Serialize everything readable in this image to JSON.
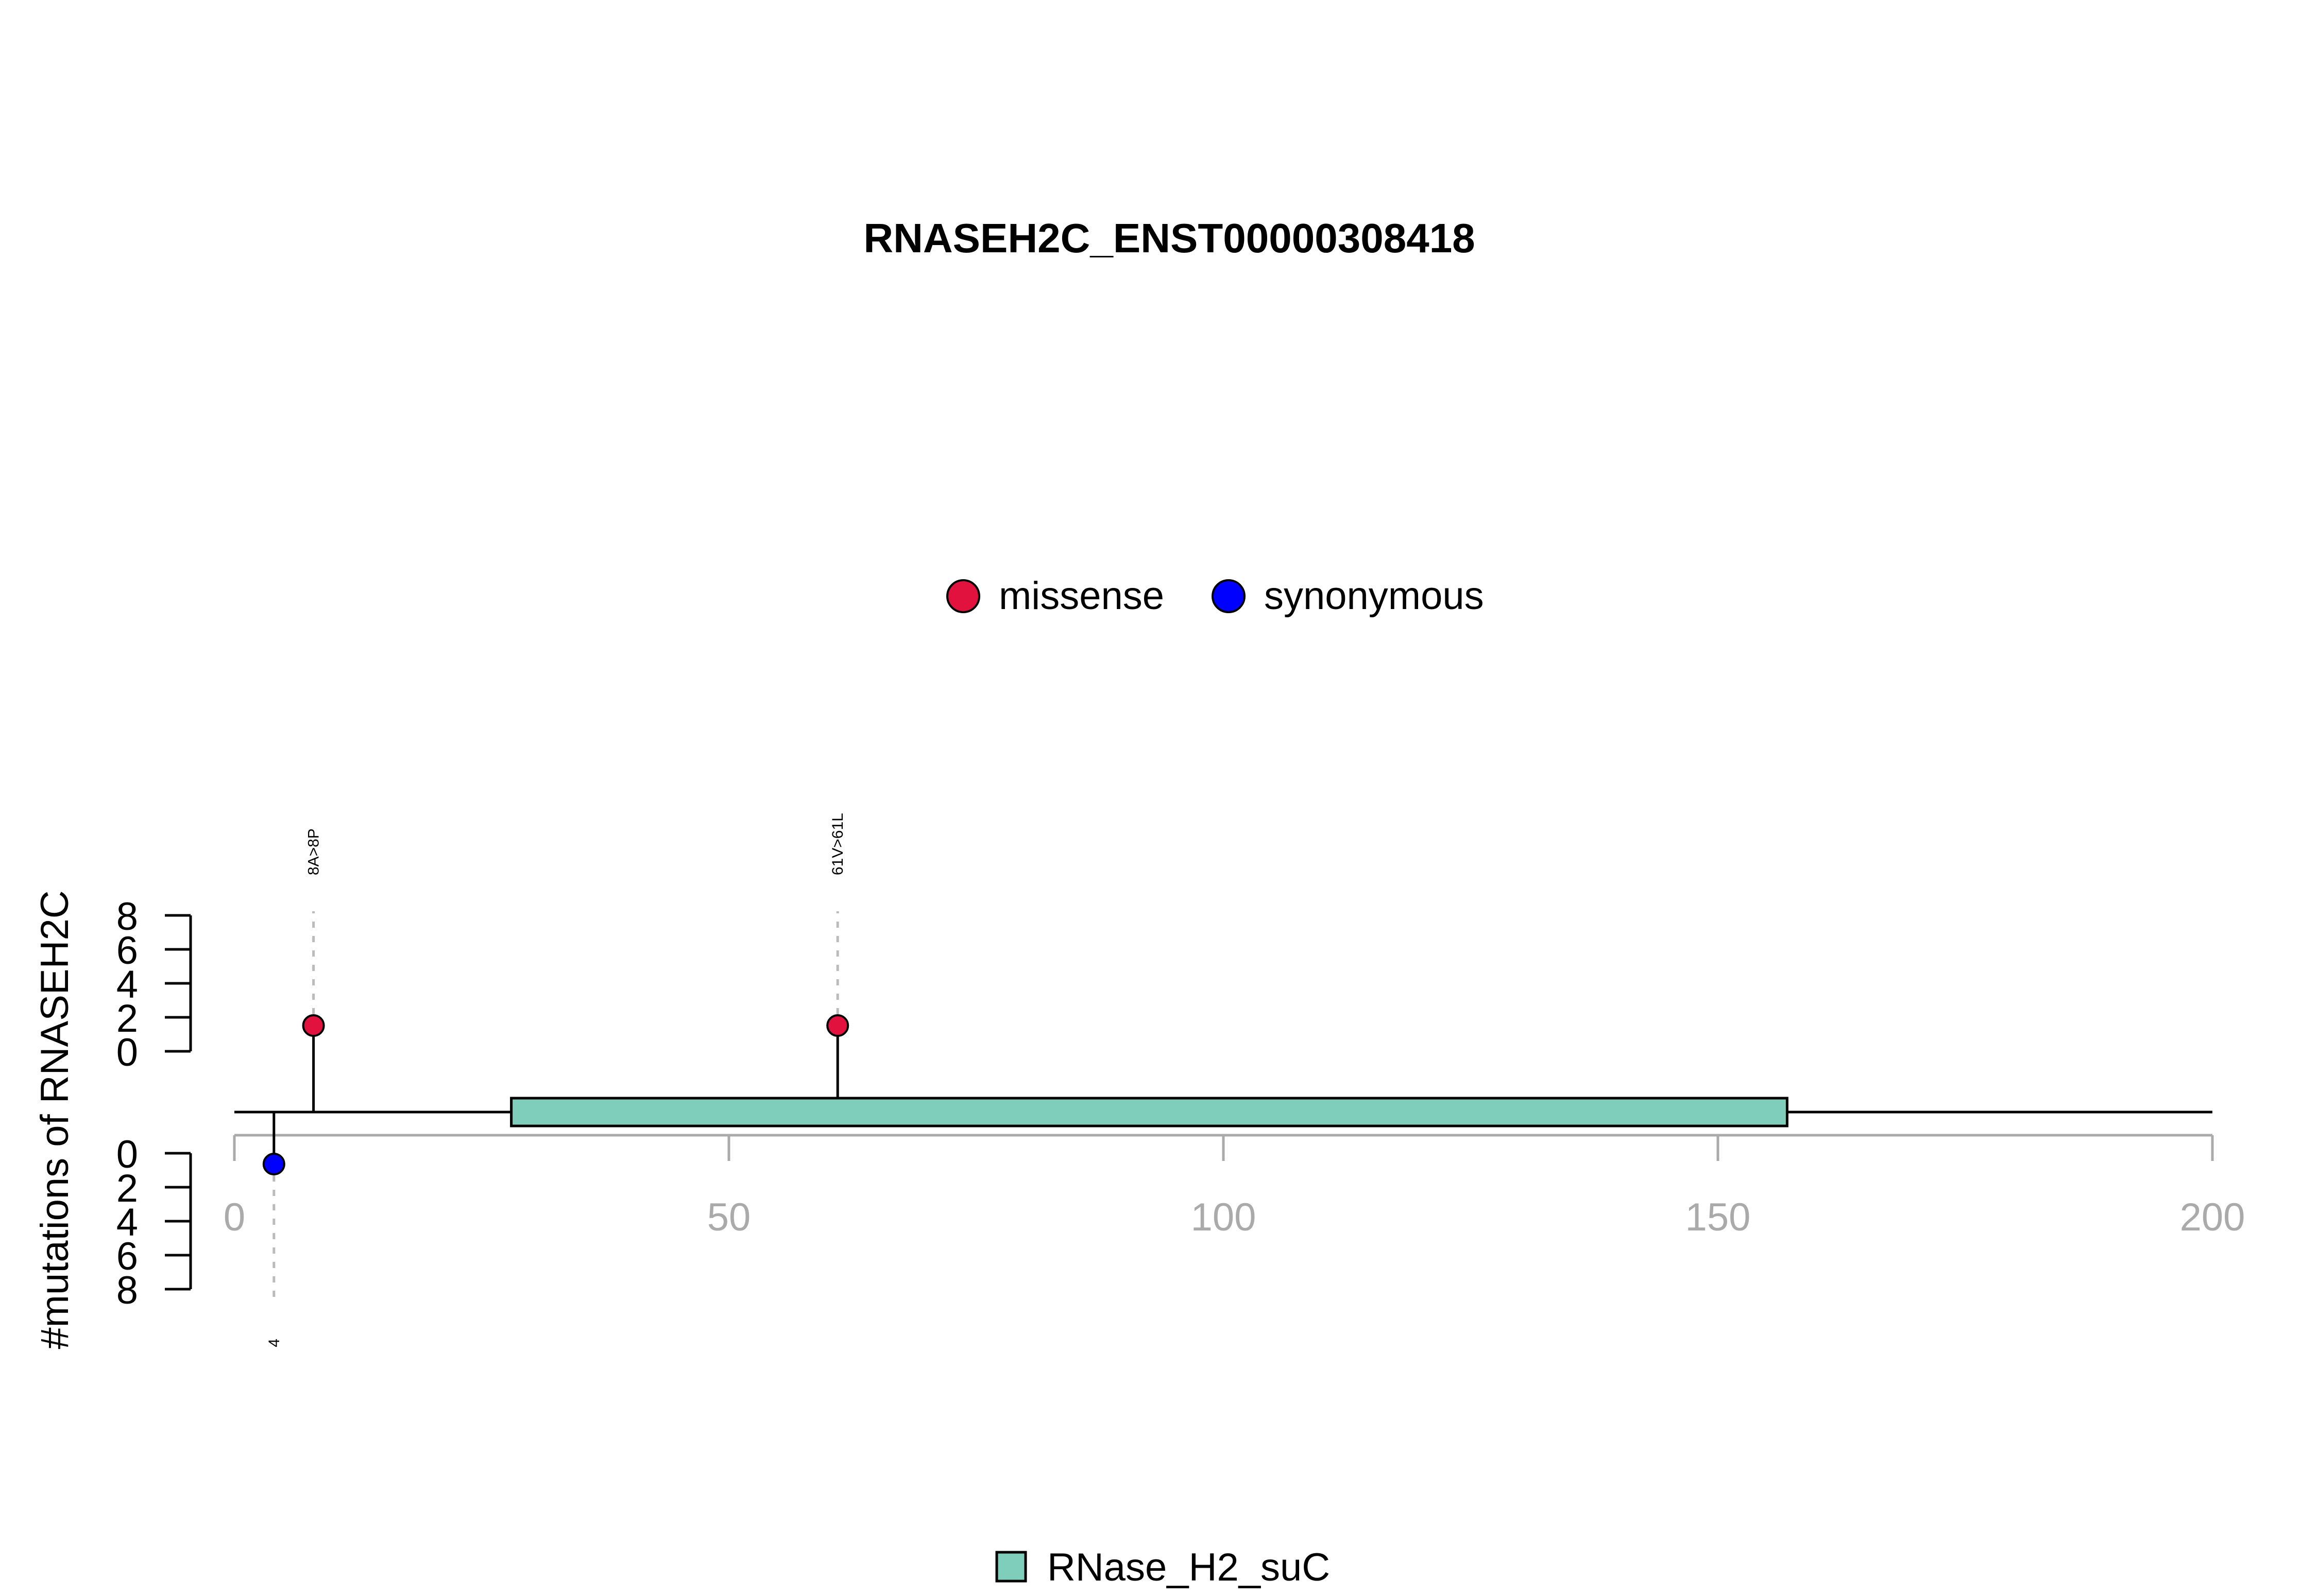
{
  "chart_data": {
    "type": "lollipop",
    "title": "RNASEH2C_ENST00000308418",
    "ylabel": "#mutations of RNASEH2C",
    "xlim": [
      0,
      200
    ],
    "xticks": [
      0,
      50,
      100,
      150,
      200
    ],
    "upper_yticks": [
      0,
      2,
      4,
      6,
      8
    ],
    "lower_yticks": [
      0,
      2,
      4,
      6,
      8
    ],
    "legend": [
      {
        "label": "missense",
        "color": "#E2123E"
      },
      {
        "label": "synonymous",
        "color": "#0000FF"
      }
    ],
    "mutations": [
      {
        "pos": 8,
        "count": 1,
        "type": "missense",
        "label": "8A>8P",
        "side": "upper"
      },
      {
        "pos": 61,
        "count": 1,
        "type": "missense",
        "label": "61V>61L",
        "side": "upper"
      },
      {
        "pos": 4,
        "count": 1,
        "type": "synonymous",
        "label": "4",
        "side": "lower"
      }
    ],
    "domains": [
      {
        "name": "RNase_H2_suC",
        "start": 28,
        "end": 157,
        "color": "#7FCDBB"
      }
    ],
    "axis_color": "#AAAAAA"
  }
}
